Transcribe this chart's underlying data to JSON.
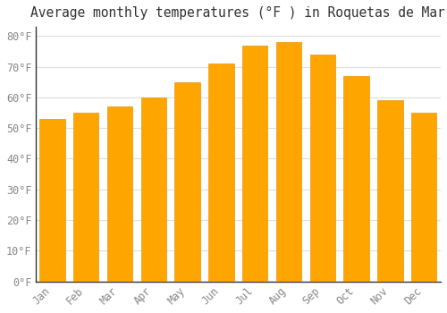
{
  "title": "Average monthly temperatures (°F ) in Roquetas de Mar",
  "months": [
    "Jan",
    "Feb",
    "Mar",
    "Apr",
    "May",
    "Jun",
    "Jul",
    "Aug",
    "Sep",
    "Oct",
    "Nov",
    "Dec"
  ],
  "values": [
    53,
    55,
    57,
    60,
    65,
    71,
    77,
    78,
    74,
    67,
    59,
    55
  ],
  "bar_color": "#FFA500",
  "bar_edge_color": "#E8960A",
  "background_color": "#FFFFFF",
  "plot_bg_color": "#FFFFFF",
  "grid_color": "#DDDDDD",
  "ylim": [
    0,
    83
  ],
  "yticks": [
    0,
    10,
    20,
    30,
    40,
    50,
    60,
    70,
    80
  ],
  "title_fontsize": 10.5,
  "tick_fontsize": 8.5,
  "tick_label_color": "#888888",
  "axis_color": "#333333",
  "bar_width": 0.75
}
